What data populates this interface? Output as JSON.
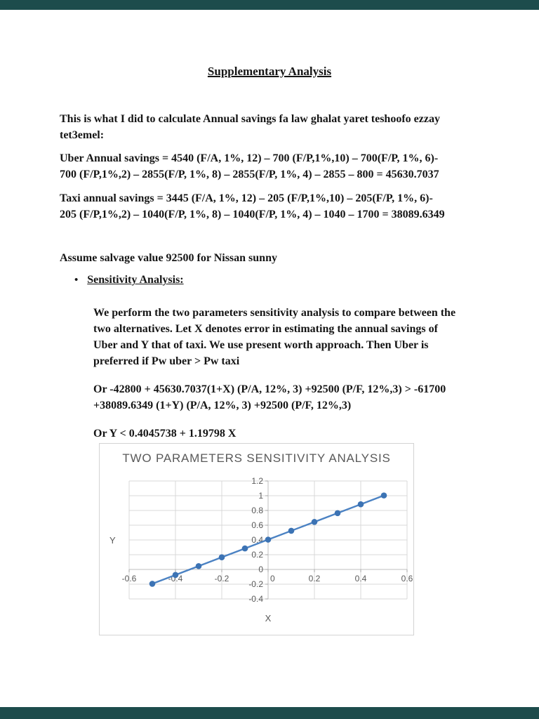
{
  "viewer": {
    "band_color": "#1d4c4c"
  },
  "doc": {
    "title": "Supplementary Analysis",
    "text_color": "#151515",
    "paragraphs": {
      "intro": [
        "This is what I did to calculate Annual savings fa law ghalat yaret teshoofo ezzay",
        "tet3emel:"
      ],
      "uber": [
        "Uber Annual savings = 4540 (F/A, 1%, 12) – 700 (F/P,1%,10) – 700(F/P, 1%, 6)-",
        "700 (F/P,1%,2) – 2855(F/P, 1%, 8) – 2855(F/P, 1%, 4) – 2855 – 800 = 45630.7037"
      ],
      "taxi": [
        "Taxi annual savings = 3445 (F/A, 1%, 12) – 205 (F/P,1%,10) – 205(F/P, 1%, 6)-",
        "205 (F/P,1%,2) – 1040(F/P, 1%, 8) – 1040(F/P, 1%, 4) – 1040 – 1700 = 38089.6349"
      ],
      "salvage": [
        "Assume salvage value 92500 for Nissan sunny"
      ],
      "bullet_marker": "•",
      "bullet": "Sensitivity Analysis:",
      "body": [
        "We perform the two parameters sensitivity analysis to compare between the",
        "two alternatives. Let X denotes error in estimating the annual savings of",
        "Uber and Y that of taxi. We use present worth approach. Then Uber is",
        "preferred if Pw uber > Pw taxi"
      ],
      "or1": [
        "Or -42800 + 45630.7037(1+X) (P/A, 12%, 3) +92500 (P/F, 12%,3) > -61700",
        "+38089.6349 (1+Y) (P/A, 12%, 3) +92500 (P/F, 12%,3)"
      ],
      "or2": [
        "Or Y < 0.4045738 + 1.19798 X"
      ]
    }
  },
  "chart_data": {
    "type": "line",
    "title": "TWO PARAMETERS SENSITIVITY ANALYSIS",
    "xlabel": "X",
    "ylabel": "Y",
    "x": [
      -0.5,
      -0.4,
      -0.3,
      -0.2,
      -0.1,
      0,
      0.1,
      0.2,
      0.3,
      0.4,
      0.5
    ],
    "y": [
      -0.1944,
      -0.0746,
      0.0452,
      0.165,
      0.2848,
      0.4046,
      0.5244,
      0.6442,
      0.764,
      0.8838,
      1.0036
    ],
    "xlim": [
      -0.6,
      0.6
    ],
    "ylim": [
      -0.4,
      1.2
    ],
    "xticks": [
      -0.6,
      -0.4,
      -0.2,
      0,
      0.2,
      0.4,
      0.6
    ],
    "yticks": [
      -0.4,
      -0.2,
      0,
      0.2,
      0.4,
      0.6,
      0.8,
      1,
      1.2
    ],
    "grid": true,
    "legend": "none",
    "line_color": "#4b82c3",
    "marker_color": "#3c73b4",
    "grid_color": "#d9d9d9",
    "axis_color": "#bfbfbf",
    "tick_color": "#a6a6a6",
    "label_color": "#595959",
    "title_color": "#595959"
  }
}
